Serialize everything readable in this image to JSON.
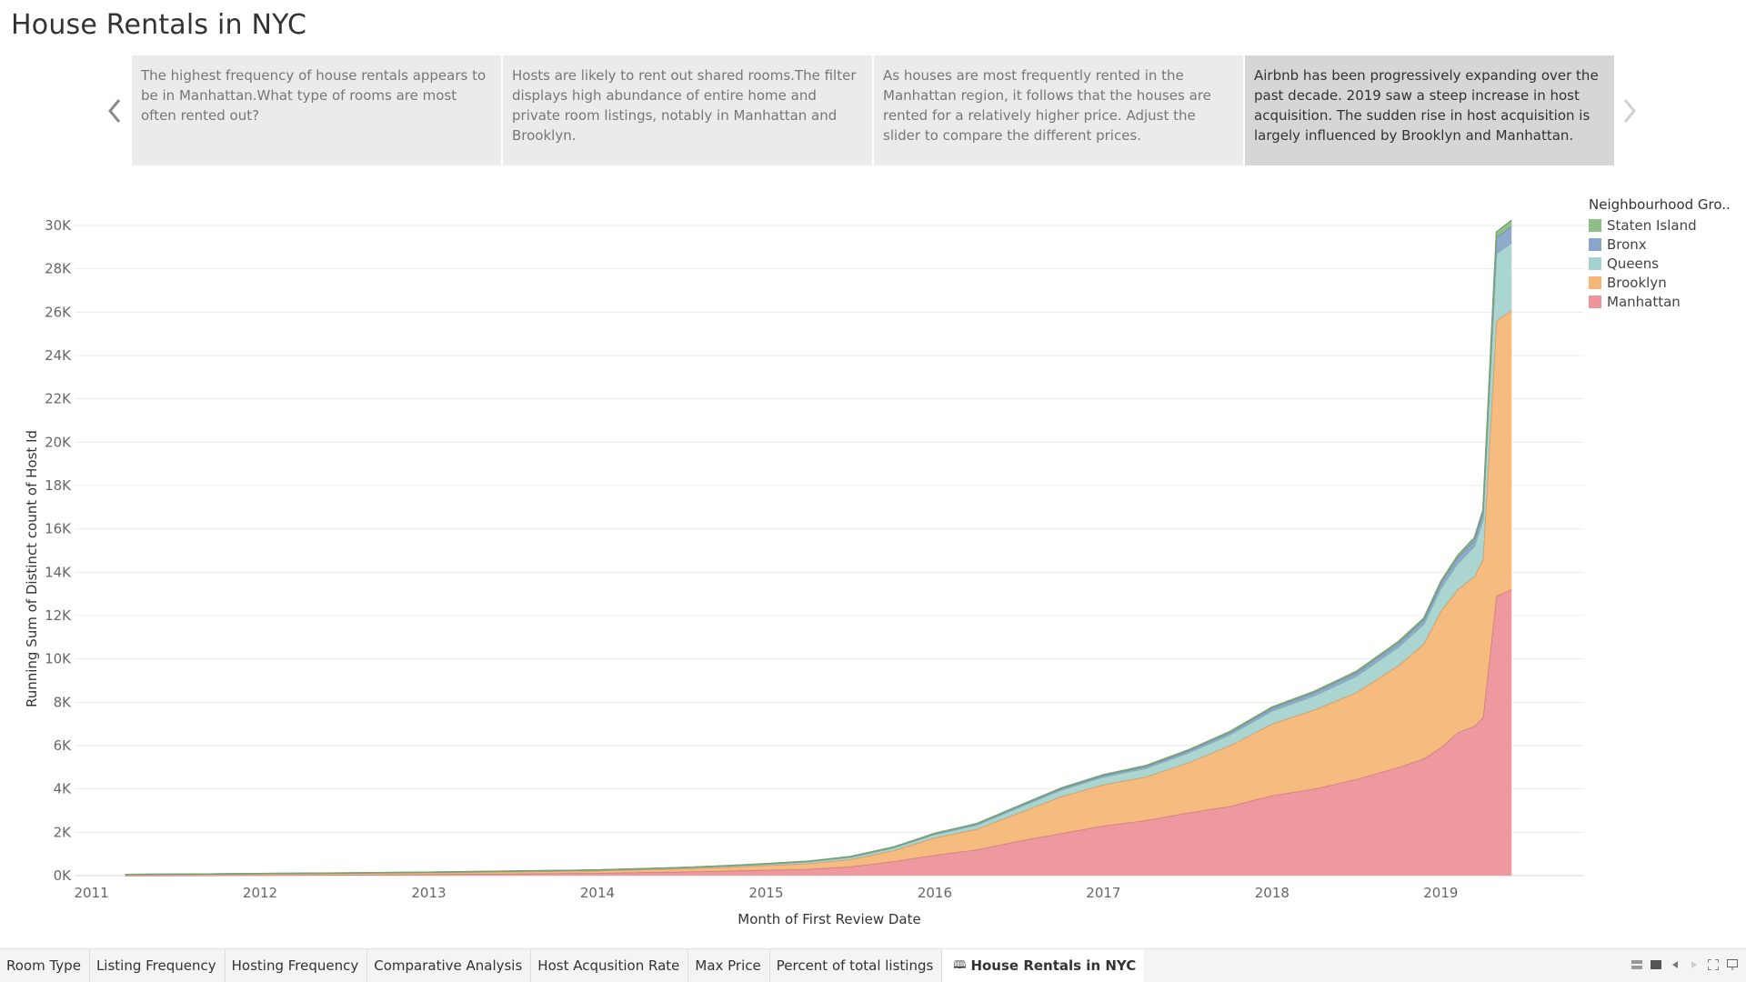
{
  "story": {
    "title": "House Rentals in NYC",
    "points": [
      "The highest frequency of house rentals appears to be in Manhattan.What type of rooms are most often rented out?",
      "Hosts are likely to rent out shared rooms.The filter displays high abundance of entire home and private room listings, notably in Manhattan and Brooklyn.",
      "As houses are most frequently rented in the Manhattan region, it follows that the houses are rented for a relatively higher price. Adjust the slider to compare the different prices.",
      "Airbnb has been progressively expanding over the past decade. 2019 saw a steep increase in host acquisition. The sudden rise in host acquisition is largely influenced by Brooklyn and Manhattan."
    ],
    "active_point": 3
  },
  "icons": {
    "prev": "chevron-left-icon",
    "next": "chevron-right-icon",
    "story_tab": "book-icon"
  },
  "legend": {
    "title": "Neighbourhood Gro..",
    "items": [
      {
        "label": "Staten Island",
        "color": "#8cc084"
      },
      {
        "label": "Bronx",
        "color": "#8aa5cb"
      },
      {
        "label": "Queens",
        "color": "#a5d3cf"
      },
      {
        "label": "Brooklyn",
        "color": "#f4b778"
      },
      {
        "label": "Manhattan",
        "color": "#ec949a"
      }
    ]
  },
  "chart_data": {
    "type": "area",
    "stacked": true,
    "xlabel": "Month of First Review Date",
    "ylabel": "Running Sum of Distinct count of Host Id",
    "x_ticks": [
      "2011",
      "2012",
      "2013",
      "2014",
      "2015",
      "2016",
      "2017",
      "2018",
      "2019"
    ],
    "y_ticks": [
      "0K",
      "2K",
      "4K",
      "6K",
      "8K",
      "10K",
      "12K",
      "14K",
      "16K",
      "18K",
      "20K",
      "22K",
      "24K",
      "26K",
      "28K",
      "30K"
    ],
    "ylim": [
      0,
      30000
    ],
    "xlim": [
      2010.9,
      2019.85
    ],
    "grid": true,
    "legend_position": "right",
    "x": [
      2011.2,
      2011.7,
      2012.0,
      2012.5,
      2013.0,
      2013.5,
      2014.0,
      2014.25,
      2014.5,
      2014.75,
      2015.0,
      2015.25,
      2015.5,
      2015.75,
      2016.0,
      2016.25,
      2016.5,
      2016.75,
      2017.0,
      2017.25,
      2017.5,
      2017.75,
      2018.0,
      2018.25,
      2018.5,
      2018.75,
      2018.9,
      2019.0,
      2019.1,
      2019.2,
      2019.25,
      2019.33,
      2019.42
    ],
    "series": [
      {
        "name": "Manhattan",
        "color": "#ec949a",
        "values": [
          0,
          10,
          20,
          35,
          60,
          90,
          120,
          150,
          180,
          220,
          260,
          300,
          420,
          650,
          950,
          1200,
          1600,
          1950,
          2300,
          2550,
          2900,
          3200,
          3700,
          4000,
          4450,
          5000,
          5400,
          5900,
          6600,
          6900,
          7300,
          12900,
          13200
        ]
      },
      {
        "name": "Brooklyn",
        "color": "#f4b778",
        "values": [
          50,
          60,
          70,
          75,
          80,
          95,
          110,
          130,
          140,
          170,
          210,
          260,
          330,
          500,
          800,
          950,
          1300,
          1700,
          1900,
          2000,
          2300,
          2800,
          3300,
          3650,
          4000,
          4700,
          5300,
          6300,
          6600,
          6900,
          7300,
          12700,
          12900
        ]
      },
      {
        "name": "Queens",
        "color": "#a5d3cf",
        "values": [
          0,
          5,
          5,
          10,
          15,
          20,
          25,
          30,
          40,
          50,
          60,
          80,
          100,
          120,
          150,
          190,
          250,
          300,
          350,
          400,
          450,
          500,
          600,
          650,
          750,
          850,
          900,
          1050,
          1200,
          1400,
          1800,
          3100,
          3100
        ]
      },
      {
        "name": "Bronx",
        "color": "#8aa5cb",
        "values": [
          0,
          0,
          0,
          0,
          0,
          5,
          5,
          5,
          10,
          10,
          15,
          20,
          25,
          30,
          40,
          50,
          60,
          70,
          80,
          90,
          100,
          110,
          130,
          150,
          170,
          190,
          210,
          240,
          270,
          300,
          340,
          750,
          780
        ]
      },
      {
        "name": "Staten Island",
        "color": "#8cc084",
        "values": [
          0,
          0,
          0,
          0,
          0,
          0,
          0,
          0,
          0,
          0,
          5,
          5,
          5,
          10,
          10,
          15,
          20,
          25,
          30,
          35,
          40,
          45,
          50,
          55,
          60,
          70,
          80,
          90,
          100,
          110,
          130,
          250,
          260
        ]
      }
    ]
  },
  "tabs": [
    {
      "label": "Room Type"
    },
    {
      "label": "Listing Frequency"
    },
    {
      "label": "Hosting Frequency"
    },
    {
      "label": "Comparative Analysis"
    },
    {
      "label": "Host Acqusition Rate"
    },
    {
      "label": "Max Price"
    },
    {
      "label": "Percent of total listings"
    },
    {
      "label": "House Rentals in NYC",
      "active": true
    }
  ]
}
